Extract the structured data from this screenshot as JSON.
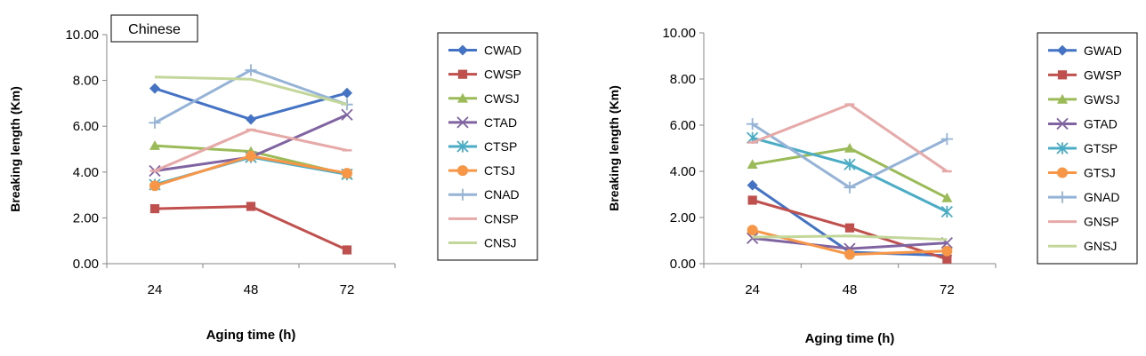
{
  "chart_data": [
    {
      "type": "line",
      "annotation": "Chinese",
      "x": [
        24,
        48,
        72
      ],
      "xlabel": "Aging time (h)",
      "ylabel": "Breaking length (Km)",
      "ylim": [
        0,
        10
      ],
      "yticks": [
        "0.00",
        "2.00",
        "4.00",
        "6.00",
        "8.00",
        "10.00"
      ],
      "xticks": [
        "24",
        "48",
        "72"
      ],
      "legend_position": "right",
      "grid": false,
      "series": [
        {
          "name": "CWAD",
          "values": [
            7.65,
            6.3,
            7.45
          ],
          "color": "#4472C4",
          "marker": "diamond"
        },
        {
          "name": "CWSP",
          "values": [
            2.4,
            2.5,
            0.6
          ],
          "color": "#C0504D",
          "marker": "square"
        },
        {
          "name": "CWSJ",
          "values": [
            5.15,
            4.9,
            3.9
          ],
          "color": "#9BBB59",
          "marker": "triangle"
        },
        {
          "name": "CTAD",
          "values": [
            4.05,
            4.65,
            6.5
          ],
          "color": "#8064A2",
          "marker": "x"
        },
        {
          "name": "CTSP",
          "values": [
            3.45,
            4.65,
            3.9
          ],
          "color": "#4BACC6",
          "marker": "star"
        },
        {
          "name": "CTSJ",
          "values": [
            3.4,
            4.7,
            3.95
          ],
          "color": "#F79646",
          "marker": "circle"
        },
        {
          "name": "CNAD",
          "values": [
            6.15,
            8.45,
            6.95
          ],
          "color": "#95B3D7",
          "marker": "plus"
        },
        {
          "name": "CNSP",
          "values": [
            4.05,
            5.85,
            4.95
          ],
          "color": "#E6A9A7",
          "marker": "dash"
        },
        {
          "name": "CNSJ",
          "values": [
            8.15,
            8.05,
            6.95
          ],
          "color": "#C4D79B",
          "marker": "none"
        }
      ]
    },
    {
      "type": "line",
      "x": [
        24,
        48,
        72
      ],
      "xlabel": "Aging time (h)",
      "ylabel": "Breaking length (Km)",
      "ylim": [
        0,
        10
      ],
      "yticks": [
        "0.00",
        "2.00",
        "4.00",
        "6.00",
        "8.00",
        "10.00"
      ],
      "xticks": [
        "24",
        "48",
        "72"
      ],
      "legend_position": "right",
      "grid": false,
      "series": [
        {
          "name": "GWAD",
          "values": [
            3.4,
            0.5,
            0.35
          ],
          "color": "#4472C4",
          "marker": "diamond"
        },
        {
          "name": "GWSP",
          "values": [
            2.75,
            1.55,
            0.2
          ],
          "color": "#C0504D",
          "marker": "square"
        },
        {
          "name": "GWSJ",
          "values": [
            4.3,
            5.0,
            2.85
          ],
          "color": "#9BBB59",
          "marker": "triangle"
        },
        {
          "name": "GTAD",
          "values": [
            1.1,
            0.65,
            0.9
          ],
          "color": "#8064A2",
          "marker": "x"
        },
        {
          "name": "GTSP",
          "values": [
            5.45,
            4.3,
            2.25
          ],
          "color": "#4BACC6",
          "marker": "star"
        },
        {
          "name": "GTSJ",
          "values": [
            1.45,
            0.4,
            0.55
          ],
          "color": "#F79646",
          "marker": "circle"
        },
        {
          "name": "GNAD",
          "values": [
            6.05,
            3.3,
            5.4
          ],
          "color": "#95B3D7",
          "marker": "plus"
        },
        {
          "name": "GNSP",
          "values": [
            5.25,
            6.9,
            4.0
          ],
          "color": "#E6A9A7",
          "marker": "dash"
        },
        {
          "name": "GNSJ",
          "values": [
            1.15,
            1.2,
            1.05
          ],
          "color": "#C4D79B",
          "marker": "none"
        }
      ]
    }
  ]
}
